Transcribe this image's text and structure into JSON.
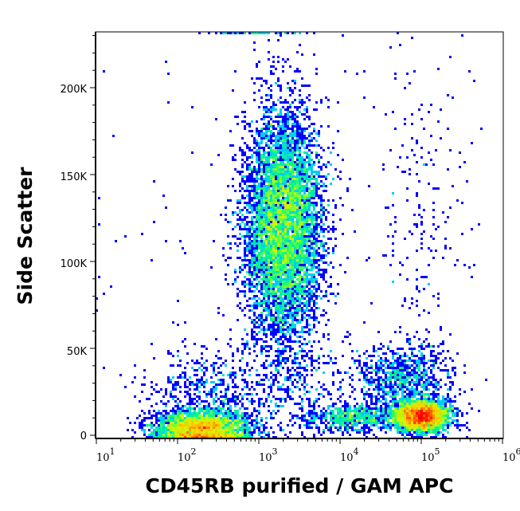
{
  "chart_data": {
    "type": "heatmap",
    "subtype": "flow-cytometry density scatter (pseudocolor)",
    "title": "",
    "xlabel": "CD45RB purified / GAM APC",
    "ylabel": "Side Scatter",
    "x_scale": "log",
    "xlim": [
      10,
      1070000
    ],
    "ylim": [
      0,
      232000
    ],
    "grid": false,
    "legend": "none",
    "x_ticks": [
      {
        "value": 10,
        "base": "10",
        "exp": "1"
      },
      {
        "value": 100,
        "base": "10",
        "exp": "2"
      },
      {
        "value": 1000,
        "base": "10",
        "exp": "3"
      },
      {
        "value": 10000,
        "base": "10",
        "exp": "4"
      },
      {
        "value": 100000,
        "base": "10",
        "exp": "5"
      },
      {
        "value": 1000000,
        "base": "10",
        "exp": "6"
      }
    ],
    "y_ticks": [
      {
        "value": 0,
        "label": "0"
      },
      {
        "value": 50000,
        "label": "50K"
      },
      {
        "value": 100000,
        "label": "100K"
      },
      {
        "value": 150000,
        "label": "150K"
      },
      {
        "value": 200000,
        "label": "200K"
      }
    ],
    "colormap": [
      "#0000ff",
      "#00c8ff",
      "#00ff80",
      "#c8ff00",
      "#ffc800",
      "#ff0000"
    ],
    "populations": [
      {
        "x_center": 2000,
        "x_log_sd": 0.24,
        "y_center": 120000,
        "y_sd": 33000,
        "events": 7000
      },
      {
        "x_center": 200,
        "x_log_sd": 0.28,
        "y_center": 4000,
        "y_sd": 5000,
        "events": 3200
      },
      {
        "x_center": 100000,
        "x_log_sd": 0.17,
        "y_center": 11000,
        "y_sd": 4500,
        "events": 3200
      },
      {
        "x_center": 15000,
        "x_log_sd": 0.3,
        "y_center": 10000,
        "y_sd": 4000,
        "events": 700
      },
      {
        "x_center": 60000,
        "x_log_sd": 0.3,
        "y_center": 32000,
        "y_sd": 10000,
        "events": 900
      },
      {
        "x_center": 250,
        "x_log_sd": 0.35,
        "y_center": 25000,
        "y_sd": 12000,
        "events": 500
      },
      {
        "x_center": 2500,
        "x_log_sd": 0.35,
        "y_center": 30000,
        "y_sd": 15000,
        "events": 350
      },
      {
        "x_center": 100000,
        "x_log_sd": 0.3,
        "y_center": 120000,
        "y_sd": 45000,
        "events": 180
      }
    ]
  }
}
